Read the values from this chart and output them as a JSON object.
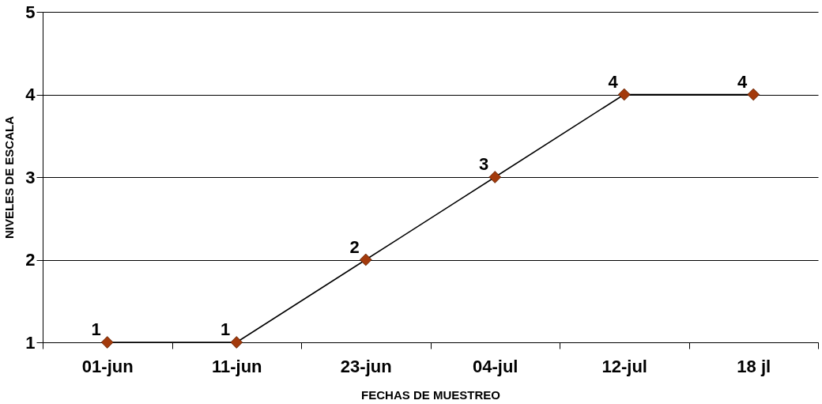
{
  "chart_data": {
    "type": "line",
    "xlabel": "FECHAS DE MUESTREO",
    "ylabel": "NIVELES DE ESCALA",
    "categories": [
      "01-jun",
      "11-jun",
      "23-jun",
      "04-jul",
      "12-jul",
      "18 jl"
    ],
    "series": [
      {
        "color": "#a33a0c",
        "values": [
          1,
          1,
          2,
          3,
          4,
          4
        ]
      }
    ],
    "ylim": [
      1,
      5
    ],
    "yticks": [
      1,
      2,
      3,
      4,
      5
    ],
    "grid": "y",
    "marker": "diamond",
    "data_labels": true
  }
}
